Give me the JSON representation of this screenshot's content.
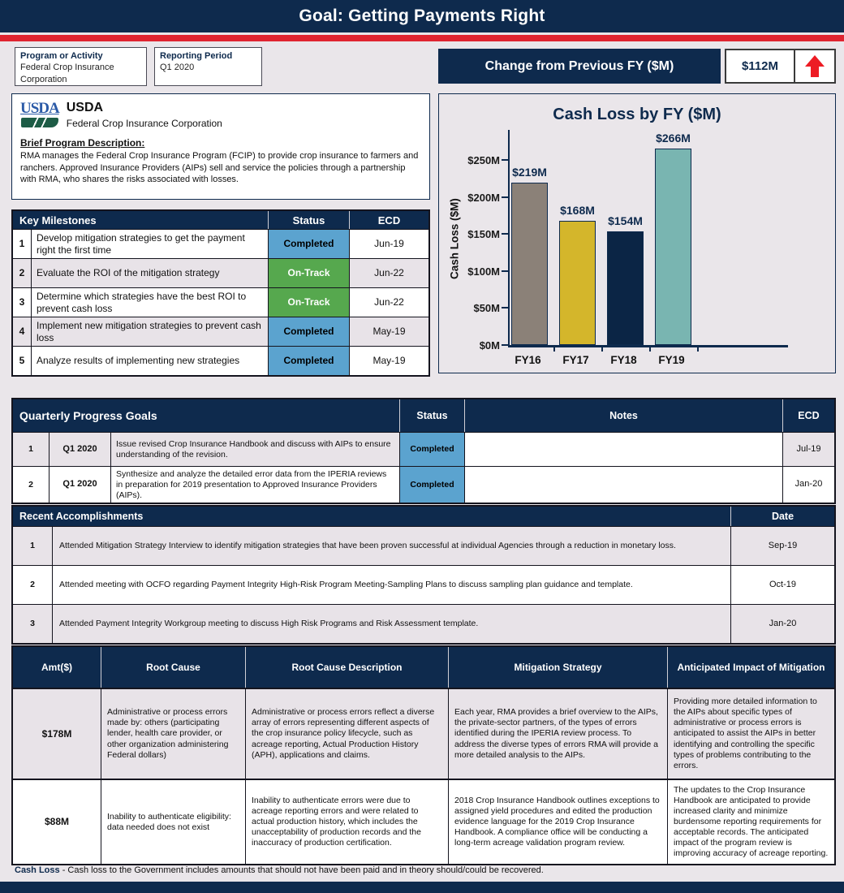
{
  "header": {
    "title": "Goal: Getting Payments Right"
  },
  "meta": {
    "program_label": "Program or Activity",
    "program_value": "Federal Crop Insurance Corporation",
    "period_label": "Reporting Period",
    "period_value": "Q1 2020",
    "change_label": "Change from Previous FY ($M)",
    "change_value": "$112M",
    "change_direction": "up",
    "arrow_color": "#ED1C24"
  },
  "program_info": {
    "logo_text": "USDA",
    "org_name": "USDA",
    "org_subtitle": "Federal Crop Insurance Corporation",
    "description_label": "Brief Program Description:",
    "description": "RMA manages the Federal Crop Insurance Program (FCIP) to provide crop insurance to farmers and ranchers. Approved Insurance Providers (AIPs) sell and service the policies through a partnership with RMA, who shares the risks associated with losses."
  },
  "milestones": {
    "title": "Key Milestones",
    "col_status": "Status",
    "col_ecd": "ECD",
    "rows": [
      {
        "num": "1",
        "text": "Develop mitigation strategies to get the payment right the first time",
        "status": "Completed",
        "ecd": "Jun-19"
      },
      {
        "num": "2",
        "text": "Evaluate the ROI of the mitigation strategy",
        "status": "On-Track",
        "ecd": "Jun-22"
      },
      {
        "num": "3",
        "text": "Determine which strategies have the best ROI to prevent cash loss",
        "status": "On-Track",
        "ecd": "Jun-22"
      },
      {
        "num": "4",
        "text": "Implement new mitigation strategies to prevent cash loss",
        "status": "Completed",
        "ecd": "May-19"
      },
      {
        "num": "5",
        "text": "Analyze results of implementing new strategies",
        "status": "Completed",
        "ecd": "May-19"
      }
    ]
  },
  "chart_data": {
    "type": "bar",
    "title": "Cash Loss by FY ($M)",
    "ylabel": "Cash Loss ($M)",
    "xlabel": "",
    "categories": [
      "FY16",
      "FY17",
      "FY18",
      "FY19"
    ],
    "values": [
      219,
      168,
      154,
      266
    ],
    "labels": [
      "$219M",
      "$168M",
      "$154M",
      "$266M"
    ],
    "bar_colors": [
      "#8B8178",
      "#D4B62B",
      "#0B2545",
      "#79B5B1"
    ],
    "ylim": [
      0,
      294
    ],
    "yticks": [
      {
        "label": "$0M",
        "value": 0
      },
      {
        "label": "$50M",
        "value": 50
      },
      {
        "label": "$100M",
        "value": 100
      },
      {
        "label": "$150M",
        "value": 150
      },
      {
        "label": "$200M",
        "value": 200
      },
      {
        "label": "$250M",
        "value": 250
      }
    ],
    "grid": false,
    "legend": "none"
  },
  "quarterly": {
    "title": "Quarterly Progress Goals",
    "col_status": "Status",
    "col_notes": "Notes",
    "col_ecd": "ECD",
    "rows": [
      {
        "num": "1",
        "quarter": "Q1 2020",
        "text": "Issue revised Crop Insurance Handbook and discuss with AIPs to ensure understanding of the revision.",
        "status": "Completed",
        "notes": "",
        "ecd": "Jul-19"
      },
      {
        "num": "2",
        "quarter": "Q1 2020",
        "text": "Synthesize and analyze the detailed error data from the IPERIA reviews in preparation for 2019 presentation to Approved Insurance Providers (AIPs).",
        "status": "Completed",
        "notes": "",
        "ecd": "Jan-20"
      }
    ]
  },
  "accomplishments": {
    "title": "Recent  Accomplishments",
    "col_date": "Date",
    "rows": [
      {
        "num": "1",
        "text": "Attended Mitigation Strategy Interview to identify mitigation strategies that have been proven successful at individual Agencies through a reduction in monetary loss.",
        "date": "Sep-19"
      },
      {
        "num": "2",
        "text": "Attended meeting with OCFO regarding Payment Integrity High-Risk Program Meeting-Sampling Plans to discuss sampling plan guidance and template.",
        "date": "Oct-19"
      },
      {
        "num": "3",
        "text": "Attended Payment Integrity Workgroup meeting to discuss High Risk Programs and Risk Assessment template.",
        "date": "Jan-20"
      }
    ]
  },
  "root_causes": {
    "col_amt": "Amt($)",
    "col_cause": "Root Cause",
    "col_description": "Root Cause Description",
    "col_strategy": "Mitigation Strategy",
    "col_impact": "Anticipated Impact of Mitigation",
    "rows": [
      {
        "amt": "$178M",
        "cause": "Administrative or process errors made by: others (participating lender, health care provider, or other organization administering Federal dollars)",
        "description": "Administrative or process errors reflect a diverse array of errors representing different aspects of the crop insurance policy lifecycle, such as acreage reporting, Actual Production History (APH), applications and claims.",
        "strategy": "Each year, RMA provides a brief overview to the AIPs, the private-sector partners, of the types of errors identified during the IPERIA review process. To address the diverse types of errors RMA will provide a more detailed analysis to the AIPs.",
        "impact": "Providing more detailed information to the AIPs about specific types of administrative or process errors is anticipated to assist the AIPs in better identifying and controlling the specific types of problems contributing to the errors."
      },
      {
        "amt": "$88M",
        "cause": "Inability to authenticate eligibility: data needed does not exist",
        "description": "Inability to authenticate errors were due to acreage reporting errors and were related to actual production history, which includes the unacceptability of production records and the inaccuracy of production certification.",
        "strategy": "2018 Crop Insurance Handbook outlines exceptions to assigned yield procedures and edited the production evidence language for the 2019 Crop Insurance Handbook. A compliance office will be conducting a long-term acreage validation program review.",
        "impact": "The updates to the Crop Insurance Handbook are anticipated to provide increased clarity and minimize burdensome reporting requirements for acceptable records. The anticipated impact of the program review is improving accuracy of acreage reporting."
      }
    ]
  },
  "footnote": {
    "term": "Cash Loss",
    "text": " - Cash loss to the Government includes amounts that should not have been paid and in theory should/could be recovered."
  },
  "colors": {
    "navy": "#0E2A4D",
    "red_stripe": "#E02430",
    "status_completed": "#5BA3CF",
    "status_on_track": "#56A84E",
    "page_bg": "#EAE6EA",
    "row_alt": "#E8E3E8"
  }
}
